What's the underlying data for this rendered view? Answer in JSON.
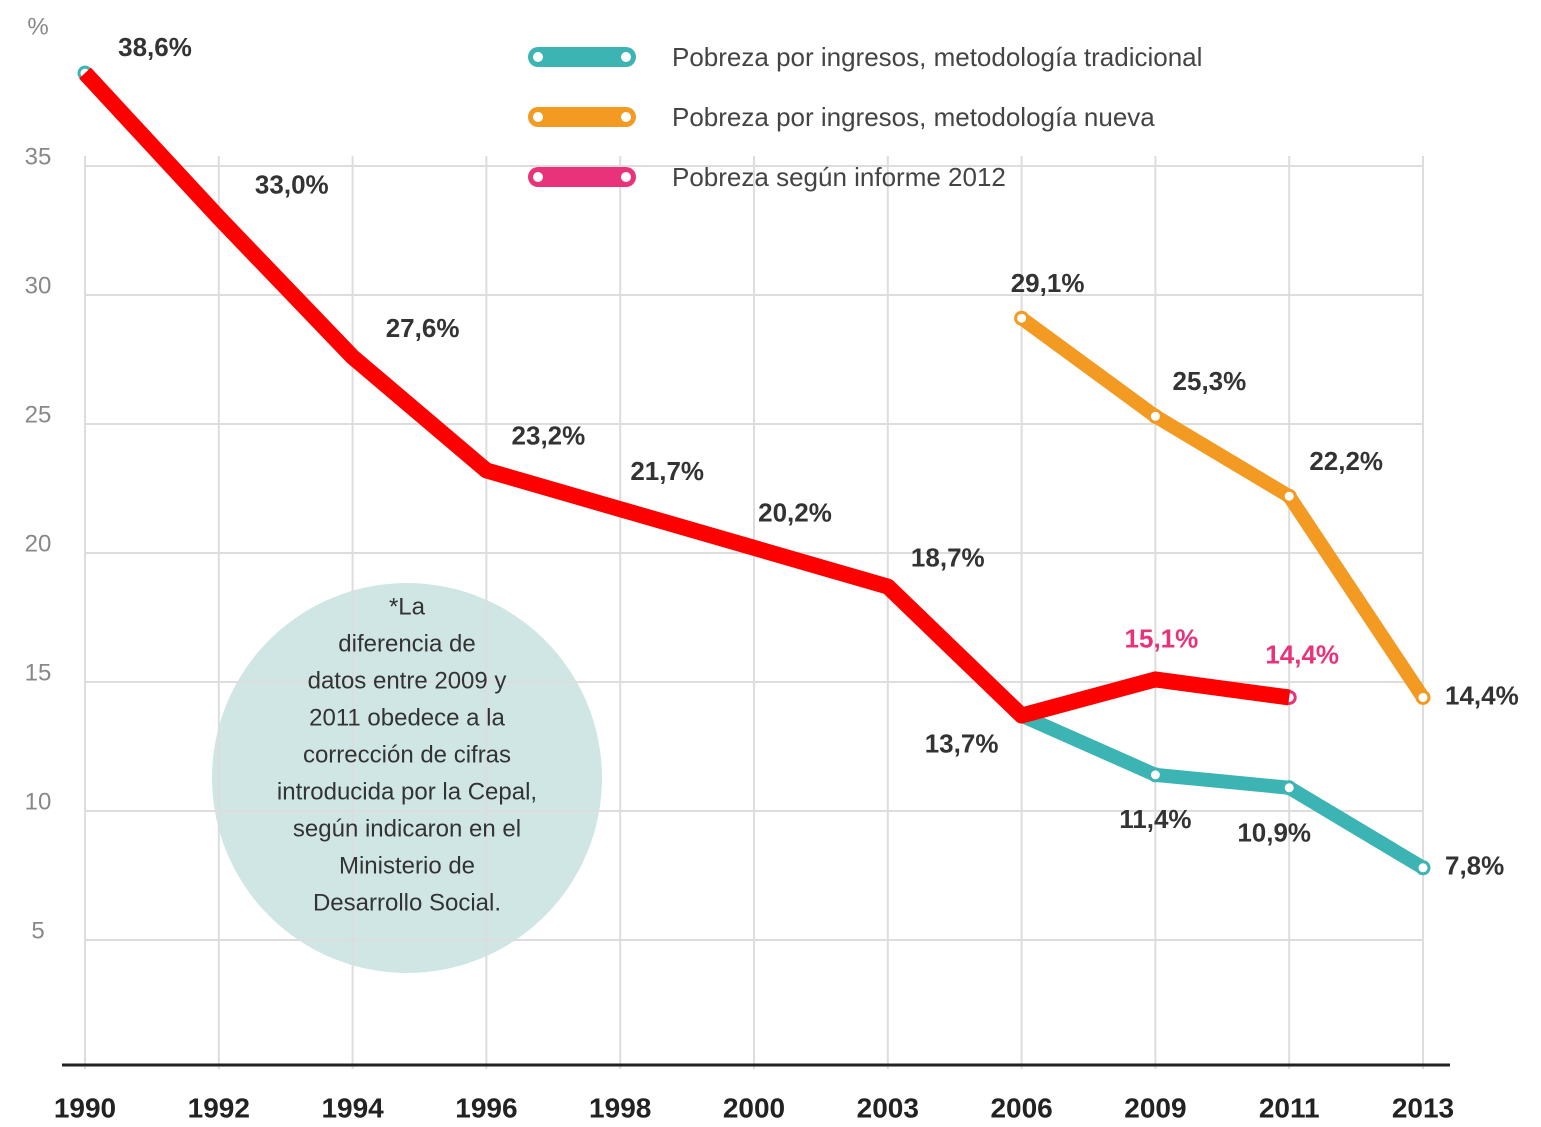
{
  "chart_data": {
    "type": "line",
    "y_label": "%",
    "categories": [
      "1990",
      "1992",
      "1994",
      "1996",
      "1998",
      "2000",
      "2003",
      "2006",
      "2009",
      "2011",
      "2013"
    ],
    "ylim": [
      0,
      40
    ],
    "yticks": [
      5,
      10,
      15,
      20,
      25,
      30,
      35
    ],
    "grid": true,
    "legend": "top",
    "series": [
      {
        "name": "Pobreza por ingresos, metodología tradicional",
        "color": "#3cb4b4",
        "values": [
          38.6,
          33.0,
          27.6,
          23.2,
          21.7,
          20.2,
          18.7,
          13.7,
          11.4,
          10.9,
          7.8
        ],
        "value_labels": [
          "38,6%",
          "33,0%",
          "27,6%",
          "23,2%",
          "21,7%",
          "20,2%",
          "18,7%",
          "13,7%",
          "11,4%",
          "10,9%",
          "7,8%"
        ]
      },
      {
        "name": "Pobreza por ingresos, metodología nueva",
        "color": "#f39a22",
        "values": [
          null,
          null,
          null,
          null,
          null,
          null,
          null,
          29.1,
          25.3,
          22.2,
          14.4
        ],
        "value_labels": [
          null,
          null,
          null,
          null,
          null,
          null,
          null,
          "29,1%",
          "25,3%",
          "22,2%",
          "14,4%"
        ]
      },
      {
        "name": "Pobreza según informe 2012",
        "color": "#e8337a",
        "values": [
          null,
          null,
          null,
          null,
          null,
          null,
          null,
          13.7,
          15.1,
          14.4,
          null
        ],
        "value_labels": [
          null,
          null,
          null,
          null,
          null,
          null,
          null,
          null,
          "15,1%",
          "14,4%",
          null
        ]
      },
      {
        "color": "#ff0000",
        "values": [
          38.6,
          33.0,
          27.6,
          23.2,
          21.7,
          20.2,
          18.7,
          13.7,
          15.1,
          14.4,
          null
        ]
      }
    ],
    "annotation": [
      "*La",
      "diferencia de",
      "datos entre 2009 y",
      "2011 obedece a la",
      "corrección de cifras",
      "introducida por la Cepal,",
      "según indicaron en el",
      "Ministerio de",
      "Desarrollo Social."
    ]
  }
}
